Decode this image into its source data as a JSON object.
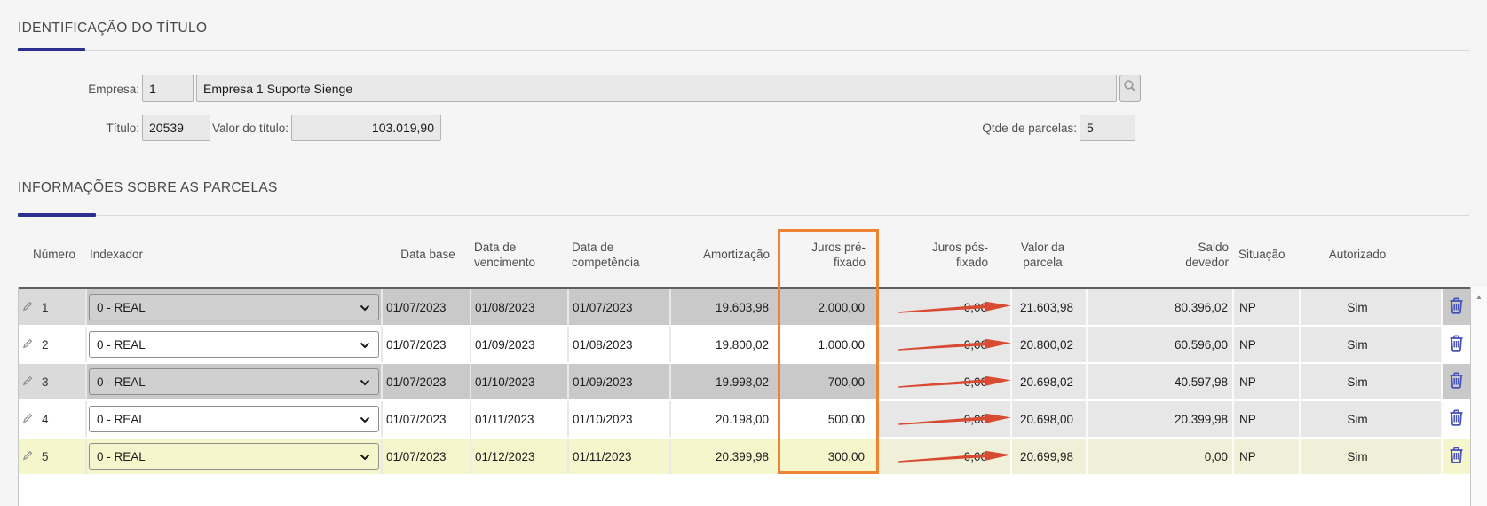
{
  "colors": {
    "accent_navy": "#2c2f90",
    "table_top_border": "#606060",
    "annotation_orange": "#ee8433",
    "annotation_red": "#d94a32",
    "trash_blue": "#4753b5",
    "selected_row_yellow": "#f6f6cd"
  },
  "icons": {
    "search": "magnifier-icon",
    "edit": "pencil-icon",
    "delete": "trash-icon",
    "dropdown": "chevron-down-icon",
    "scroll_up": "triangle-up-icon"
  },
  "identificacao": {
    "title": "IDENTIFICAÇÃO DO TÍTULO",
    "empresa_label": "Empresa:",
    "empresa_code": "1",
    "empresa_name": "Empresa 1 Suporte Sienge",
    "titulo_label": "Título:",
    "titulo_value": "20539",
    "valor_label": "Valor do título:",
    "valor_value": "103.019,90",
    "qtde_label": "Qtde de parcelas:",
    "qtde_value": "5"
  },
  "parcelas": {
    "title": "INFORMAÇÕES SOBRE AS PARCELAS",
    "columns": [
      "Número",
      "Indexador",
      "Data base",
      "Data de vencimento",
      "Data de competência",
      "Amortização",
      "Juros pré-fixado",
      "Juros pós-fixado",
      "Valor da parcela",
      "Saldo devedor",
      "Situação",
      "Autorizado"
    ],
    "rows": [
      {
        "numero": "1",
        "indexador": "0 - REAL",
        "data_base": "01/07/2023",
        "data_vencimento": "01/08/2023",
        "data_competencia": "01/07/2023",
        "amortizacao": "19.603,98",
        "juros_pre": "2.000,00",
        "juros_pos": "0,00",
        "valor_parcela": "21.603,98",
        "saldo_devedor": "80.396,02",
        "situacao": "NP",
        "autorizado": "Sim",
        "selected": false
      },
      {
        "numero": "2",
        "indexador": "0 - REAL",
        "data_base": "01/07/2023",
        "data_vencimento": "01/09/2023",
        "data_competencia": "01/08/2023",
        "amortizacao": "19.800,02",
        "juros_pre": "1.000,00",
        "juros_pos": "0,00",
        "valor_parcela": "20.800,02",
        "saldo_devedor": "60.596,00",
        "situacao": "NP",
        "autorizado": "Sim",
        "selected": false
      },
      {
        "numero": "3",
        "indexador": "0 - REAL",
        "data_base": "01/07/2023",
        "data_vencimento": "01/10/2023",
        "data_competencia": "01/09/2023",
        "amortizacao": "19.998,02",
        "juros_pre": "700,00",
        "juros_pos": "0,00",
        "valor_parcela": "20.698,02",
        "saldo_devedor": "40.597,98",
        "situacao": "NP",
        "autorizado": "Sim",
        "selected": false
      },
      {
        "numero": "4",
        "indexador": "0 - REAL",
        "data_base": "01/07/2023",
        "data_vencimento": "01/11/2023",
        "data_competencia": "01/10/2023",
        "amortizacao": "20.198,00",
        "juros_pre": "500,00",
        "juros_pos": "0,00",
        "valor_parcela": "20.698,00",
        "saldo_devedor": "20.399,98",
        "situacao": "NP",
        "autorizado": "Sim",
        "selected": false
      },
      {
        "numero": "5",
        "indexador": "0 - REAL",
        "data_base": "01/07/2023",
        "data_vencimento": "01/12/2023",
        "data_competencia": "01/11/2023",
        "amortizacao": "20.399,98",
        "juros_pre": "300,00",
        "juros_pos": "0,00",
        "valor_parcela": "20.699,98",
        "saldo_devedor": "0,00",
        "situacao": "NP",
        "autorizado": "Sim",
        "selected": true
      }
    ]
  },
  "annotations": {
    "boxed_column": "Juros pré-fixado",
    "arrows_point_to": "Valor da parcela",
    "arrow_rows": [
      1,
      2,
      3,
      4,
      5
    ]
  }
}
